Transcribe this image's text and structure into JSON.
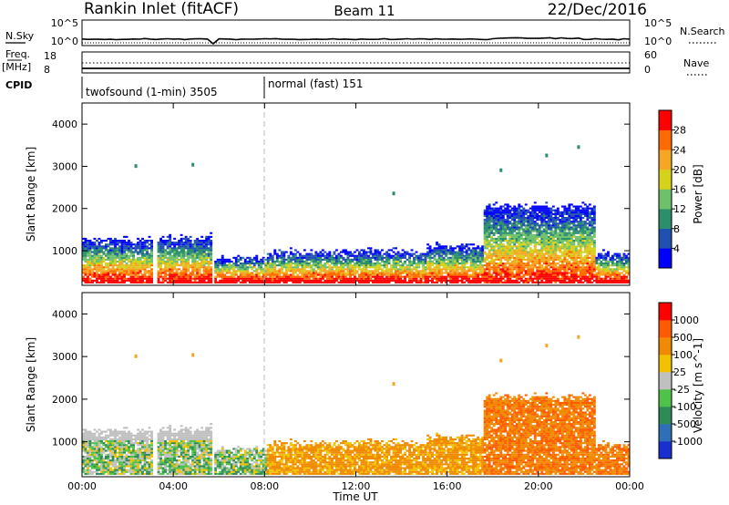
{
  "header": {
    "title_left": "Rankin Inlet (fitACF)",
    "title_center": "Beam 11",
    "title_right": "22/Dec/2016"
  },
  "info_panels": {
    "nsky_label": "N.Sky",
    "nsearch_label": "N.Search",
    "freq_label_line1": "Freq.",
    "freq_label_line2": "[MHz]",
    "nave_label": "Nave",
    "cpid_label": "CPID",
    "nsky_ticks_left": [
      "10^5",
      "10^0"
    ],
    "nsky_ticks_right": [
      "10^5",
      "10^0"
    ],
    "freq_ticks_left": [
      "18",
      "8"
    ],
    "nave_ticks_right": [
      "60",
      "0"
    ],
    "cpid_segments": [
      {
        "label": "twofsound (1-min) 3505",
        "start_hour": 0
      },
      {
        "label": "normal (fast) 151",
        "start_hour": 8
      }
    ]
  },
  "chart_data": [
    {
      "type": "heatmap",
      "title": "",
      "xlabel": "",
      "ylabel": "Slant Range [km]",
      "x_ticks": [
        "00:00",
        "04:00",
        "08:00",
        "12:00",
        "16:00",
        "20:00",
        "00:00"
      ],
      "x_tick_hours": [
        0,
        4,
        8,
        12,
        16,
        20,
        24
      ],
      "y_ticks": [
        1000,
        2000,
        3000,
        4000
      ],
      "ylim": [
        180,
        4500
      ],
      "xlim_hours": [
        0,
        24
      ],
      "colorbar": {
        "label": "Power [dB]",
        "ticks": [
          "4",
          "8",
          "12",
          "16",
          "20",
          "24",
          "28"
        ],
        "colors": [
          "#0000ff",
          "#2050b0",
          "#2a8f6a",
          "#6fc06b",
          "#d4d21a",
          "#f5a623",
          "#ff6a00",
          "#ff0000"
        ],
        "range": [
          0,
          30
        ]
      }
    },
    {
      "type": "heatmap",
      "title": "",
      "xlabel": "Time UT",
      "ylabel": "Slant Range [km]",
      "x_ticks": [
        "00:00",
        "04:00",
        "08:00",
        "12:00",
        "16:00",
        "20:00",
        "00:00"
      ],
      "x_tick_hours": [
        0,
        4,
        8,
        12,
        16,
        20,
        24
      ],
      "y_ticks": [
        1000,
        2000,
        3000,
        4000
      ],
      "ylim": [
        180,
        4500
      ],
      "xlim_hours": [
        0,
        24
      ],
      "colorbar": {
        "label": "Velocity [m s^-1]",
        "ticks": [
          "1000",
          "500",
          "100",
          "25",
          "-25",
          "-100",
          "-500",
          "-1000"
        ],
        "colors": [
          "#1a2fcf",
          "#2f6fb5",
          "#2e8b57",
          "#4fc24a",
          "#c0c0c0",
          "#f2c200",
          "#f08a00",
          "#ff5a00",
          "#ff0000"
        ],
        "range": [
          -1200,
          1200
        ]
      }
    }
  ]
}
